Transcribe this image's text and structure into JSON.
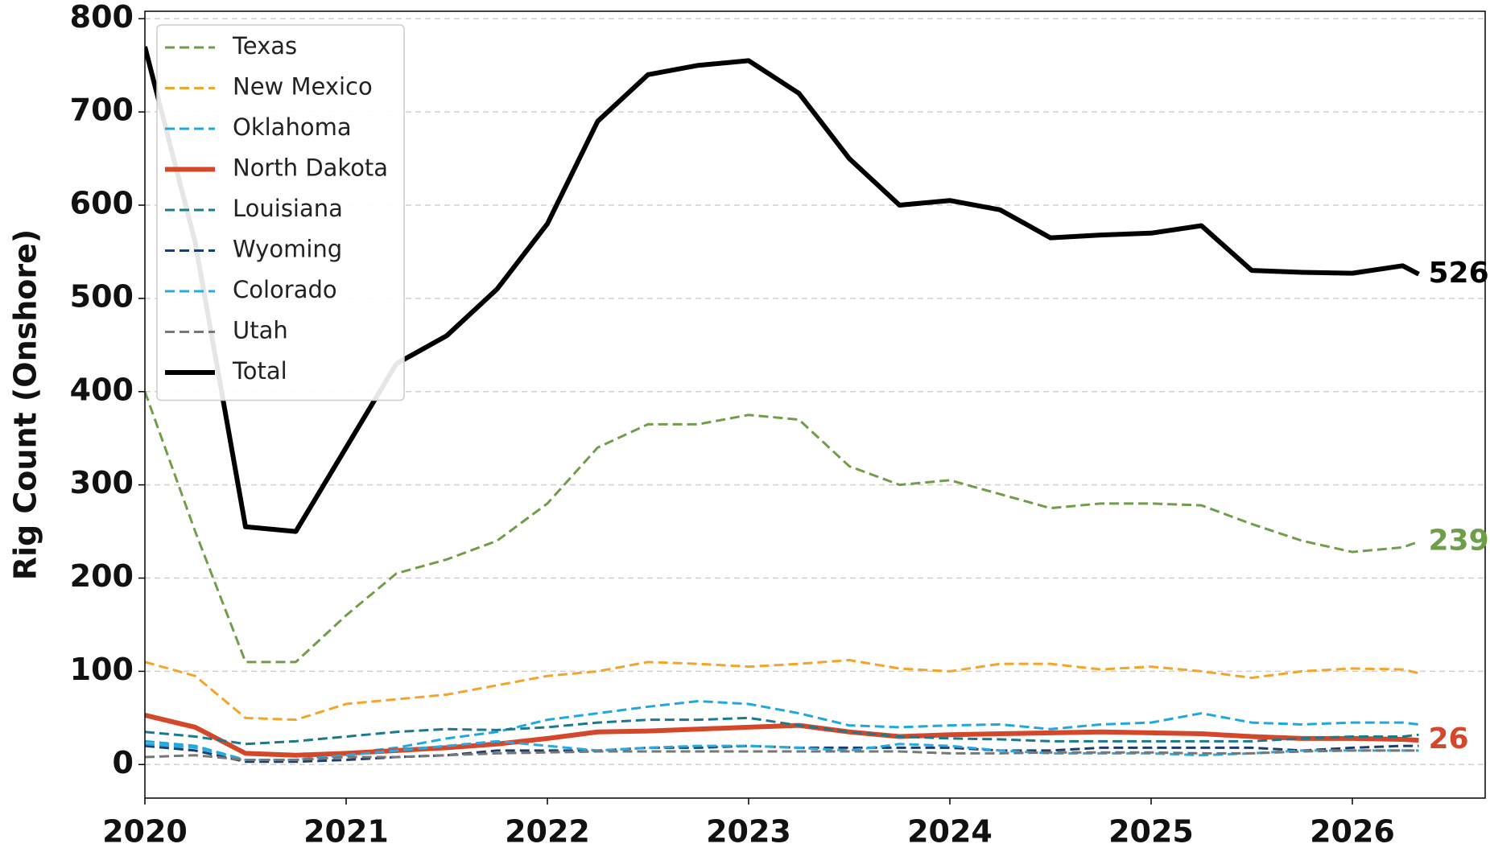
{
  "chart_data": {
    "type": "line",
    "y_label": "Rig Count (Onshore)",
    "x": [
      2020,
      2020.25,
      2020.5,
      2020.75,
      2021,
      2021.25,
      2021.5,
      2021.75,
      2022,
      2022.25,
      2022.5,
      2022.75,
      2023,
      2023.25,
      2023.5,
      2023.75,
      2024,
      2024.25,
      2024.5,
      2024.75,
      2025,
      2025.25,
      2025.5,
      2025.75,
      2026,
      2026.25,
      2026.33
    ],
    "series": [
      {
        "name": "Texas",
        "color": "#6f9e48",
        "linestyle": "dashed",
        "width": 3,
        "values": [
          400,
          250,
          110,
          110,
          160,
          205,
          220,
          240,
          280,
          340,
          365,
          365,
          375,
          370,
          320,
          300,
          305,
          290,
          275,
          280,
          280,
          278,
          258,
          240,
          228,
          233,
          239
        ]
      },
      {
        "name": "New Mexico",
        "color": "#f5a42a",
        "linestyle": "dashed",
        "width": 3,
        "values": [
          110,
          95,
          50,
          48,
          65,
          70,
          75,
          85,
          95,
          100,
          110,
          108,
          105,
          108,
          112,
          103,
          100,
          108,
          108,
          102,
          105,
          100,
          93,
          100,
          103,
          102,
          98
        ]
      },
      {
        "name": "Oklahoma",
        "color": "#1ea8e0",
        "linestyle": "dashed",
        "width": 3,
        "values": [
          25,
          20,
          5,
          5,
          12,
          18,
          28,
          35,
          48,
          55,
          62,
          68,
          65,
          55,
          42,
          40,
          42,
          43,
          38,
          43,
          45,
          55,
          45,
          43,
          45,
          45,
          43
        ]
      },
      {
        "name": "North Dakota",
        "color": "#d4472a",
        "linestyle": "solid",
        "width": 6,
        "values": [
          53,
          40,
          12,
          10,
          12,
          15,
          18,
          22,
          28,
          35,
          36,
          38,
          40,
          42,
          35,
          30,
          32,
          33,
          34,
          35,
          34,
          33,
          30,
          28,
          28,
          27,
          26
        ]
      },
      {
        "name": "Louisiana",
        "color": "#1a7a8c",
        "linestyle": "dashed",
        "width": 3,
        "values": [
          35,
          30,
          22,
          25,
          30,
          35,
          38,
          37,
          40,
          45,
          48,
          48,
          50,
          42,
          35,
          30,
          28,
          27,
          25,
          25,
          25,
          25,
          25,
          28,
          30,
          30,
          32
        ]
      },
      {
        "name": "Wyoming",
        "color": "#1d3e6b",
        "linestyle": "dashed",
        "width": 3,
        "values": [
          20,
          15,
          3,
          3,
          5,
          8,
          10,
          15,
          15,
          15,
          18,
          18,
          20,
          18,
          18,
          18,
          18,
          15,
          15,
          18,
          18,
          18,
          18,
          15,
          18,
          20,
          20
        ]
      },
      {
        "name": "Colorado",
        "color": "#27a9e1",
        "linestyle": "dashed",
        "width": 3,
        "values": [
          22,
          18,
          5,
          5,
          10,
          15,
          20,
          25,
          20,
          15,
          18,
          20,
          20,
          18,
          15,
          22,
          20,
          15,
          12,
          12,
          12,
          10,
          12,
          15,
          15,
          15,
          15
        ]
      },
      {
        "name": "Utah",
        "color": "#777777",
        "linestyle": "dashed",
        "width": 3,
        "values": [
          8,
          10,
          5,
          5,
          8,
          8,
          10,
          12,
          13,
          14,
          14,
          14,
          14,
          14,
          14,
          14,
          12,
          12,
          13,
          13,
          13,
          12,
          12,
          14,
          15,
          15,
          15
        ]
      },
      {
        "name": "Total",
        "color": "#000000",
        "linestyle": "solid",
        "width": 6,
        "values": [
          770,
          560,
          255,
          250,
          340,
          430,
          460,
          510,
          580,
          690,
          740,
          750,
          755,
          720,
          650,
          600,
          605,
          595,
          565,
          568,
          570,
          578,
          530,
          528,
          527,
          535,
          526
        ]
      }
    ],
    "annotations": [
      {
        "text": "526",
        "value": 526,
        "color": "#000000"
      },
      {
        "text": "239",
        "value": 239,
        "color": "#6f9e48"
      },
      {
        "text": "26",
        "value": 26,
        "color": "#d4472a"
      }
    ],
    "xlim": [
      2020,
      2026.66
    ],
    "xticks": [
      2020,
      2021,
      2022,
      2023,
      2024,
      2025,
      2026
    ],
    "ylim": [
      -36,
      808
    ],
    "yticks": [
      0,
      100,
      200,
      300,
      400,
      500,
      600,
      700,
      800
    ],
    "grid": true,
    "legend": "upper left"
  }
}
